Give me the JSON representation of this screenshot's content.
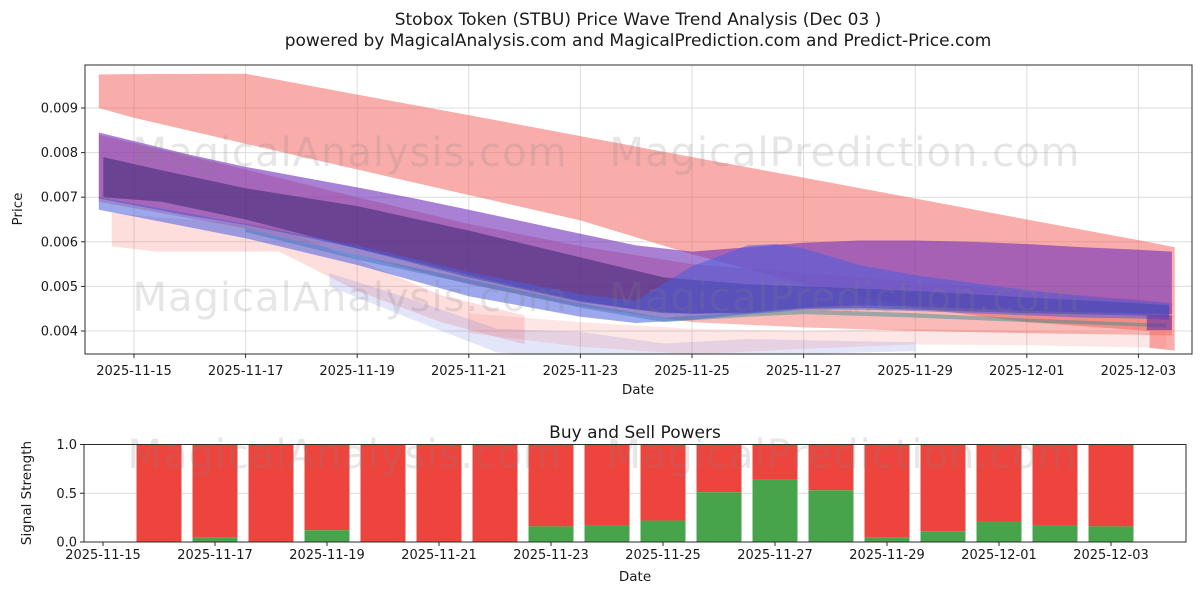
{
  "figure": {
    "title_line1": "Stobox Token (STBU) Price Wave Trend Analysis (Dec 03 )",
    "title_line2": "powered by MagicalAnalysis.com and MagicalPrediction.com and Predict-Price.com"
  },
  "watermarks": {
    "left_text": "MagicalAnalysis.com",
    "right_text": "MagicalPrediction.com"
  },
  "chart_data": [
    {
      "type": "area",
      "name": "price-wave-chart",
      "ylabel": "Price",
      "xlabel": "Date",
      "x_tick_labels": [
        "2025-11-15",
        "2025-11-17",
        "2025-11-19",
        "2025-11-21",
        "2025-11-23",
        "2025-11-25",
        "2025-11-27",
        "2025-11-29",
        "2025-12-01",
        "2025-12-03"
      ],
      "x_tick_days": [
        0,
        2,
        4,
        6,
        8,
        10,
        12,
        14,
        16,
        18
      ],
      "y_tick_labels": [
        "0.004",
        "0.005",
        "0.006",
        "0.007",
        "0.008",
        "0.009"
      ],
      "y_tick_values": [
        0.004,
        0.005,
        0.006,
        0.007,
        0.008,
        0.009
      ],
      "ylim": [
        0.0035,
        0.00995
      ],
      "grid": true,
      "bands": [
        {
          "name": "pink-faint-left",
          "color": "rgba(244,92,86,0.20)",
          "x": [
            -0.4,
            0.4,
            2.2,
            2.6,
            4,
            5.5,
            7
          ],
          "top": [
            0.00665,
            0.00655,
            0.0064,
            0.0063,
            0.0056,
            0.0048,
            0.00435
          ],
          "bottom": [
            0.0059,
            0.00578,
            0.00578,
            0.00578,
            0.0049,
            0.0042,
            0.0037
          ]
        },
        {
          "name": "blue-faint-low",
          "color": "rgba(100,110,220,0.18)",
          "x": [
            3.5,
            5,
            6.5,
            8,
            9.5,
            11,
            12.5,
            14
          ],
          "top": [
            0.0053,
            0.0047,
            0.00405,
            0.00398,
            0.00372,
            0.00382,
            0.00378,
            0.00375
          ],
          "bottom": [
            0.005,
            0.00425,
            0.00352,
            0.0034,
            0.00335,
            0.00345,
            0.0035,
            0.00355
          ]
        },
        {
          "name": "pink-faint-low",
          "color": "rgba(244,92,86,0.15)",
          "x": [
            6,
            8,
            10,
            12,
            14,
            16,
            18.5
          ],
          "top": [
            0.0044,
            0.0042,
            0.00405,
            0.004,
            0.00405,
            0.004,
            0.00395
          ],
          "bottom": [
            0.00395,
            0.00365,
            0.00348,
            0.0036,
            0.0037,
            0.00368,
            0.00362
          ]
        },
        {
          "name": "outer-red-forecast",
          "color": "rgba(244,92,86,0.50)",
          "x": [
            -0.63,
            0,
            2,
            4,
            6,
            8,
            10,
            12,
            14,
            16,
            18.2,
            18.2,
            18.65
          ],
          "top": [
            0.00975,
            0.00976,
            0.00977,
            0.0093,
            0.00884,
            0.00837,
            0.0079,
            0.00744,
            0.00697,
            0.0065,
            0.00599,
            0.00599,
            0.00588
          ],
          "bottom": [
            0.009,
            0.00878,
            0.0082,
            0.00762,
            0.00705,
            0.00648,
            0.00572,
            0.00506,
            0.00452,
            0.0042,
            0.004,
            0.00362,
            0.00356
          ]
        },
        {
          "name": "inner-red-band",
          "color": "rgba(244,92,86,0.42)",
          "x": [
            -0.63,
            2,
            4,
            6,
            8,
            10,
            12,
            14,
            16,
            18,
            18.6
          ],
          "top": [
            0.0084,
            0.00762,
            0.007,
            0.0064,
            0.0059,
            0.0055,
            0.0053,
            0.0051,
            0.0049,
            0.0047,
            0.00462
          ],
          "bottom": [
            0.0069,
            0.0063,
            0.0057,
            0.00505,
            0.00455,
            0.0042,
            0.00408,
            0.004,
            0.00395,
            0.00392,
            0.0039
          ]
        },
        {
          "name": "teal-trace",
          "color": "rgba(46,140,140,0.45)",
          "x": [
            2,
            4,
            6,
            8,
            9.5,
            11,
            12,
            14,
            16,
            18.5
          ],
          "top": [
            0.0063,
            0.0057,
            0.00516,
            0.00462,
            0.0043,
            0.00442,
            0.00448,
            0.0044,
            0.00428,
            0.00416
          ],
          "bottom": [
            0.00622,
            0.0056,
            0.00506,
            0.00452,
            0.0042,
            0.00432,
            0.00438,
            0.0043,
            0.0042,
            0.00408
          ]
        },
        {
          "name": "purple-wave",
          "color": "rgba(115,50,185,0.62)",
          "x": [
            -0.63,
            1,
            2,
            3,
            4,
            5,
            6,
            7,
            8,
            9,
            10,
            11,
            12,
            13,
            14,
            15,
            16,
            17,
            18,
            18.6
          ],
          "top": [
            0.00845,
            0.00795,
            0.00768,
            0.00745,
            0.00722,
            0.00698,
            0.00672,
            0.00645,
            0.00618,
            0.00592,
            0.00578,
            0.00588,
            0.00598,
            0.00603,
            0.00603,
            0.006,
            0.00595,
            0.00588,
            0.00582,
            0.00578
          ],
          "bottom": [
            0.00697,
            0.00658,
            0.00638,
            0.00612,
            0.00585,
            0.00556,
            0.00525,
            0.00495,
            0.00468,
            0.00448,
            0.00438,
            0.00442,
            0.00452,
            0.00458,
            0.00455,
            0.0045,
            0.00445,
            0.00442,
            0.0044,
            0.00438
          ]
        },
        {
          "name": "navy-core",
          "color": "rgba(48,32,110,0.50)",
          "x": [
            -0.55,
            0.5,
            2,
            4,
            6,
            8,
            9.5,
            11,
            12,
            13,
            14,
            16,
            18,
            18.55
          ],
          "top": [
            0.0079,
            0.0076,
            0.0072,
            0.0068,
            0.00625,
            0.00565,
            0.0052,
            0.00505,
            0.005,
            0.00495,
            0.0049,
            0.00475,
            0.00462,
            0.00458
          ],
          "bottom": [
            0.007,
            0.0069,
            0.0065,
            0.00585,
            0.0052,
            0.00465,
            0.0044,
            0.0044,
            0.0045,
            0.00452,
            0.00448,
            0.0044,
            0.00435,
            0.00432
          ]
        },
        {
          "name": "blue-wave",
          "color": "rgba(75,95,220,0.55)",
          "x": [
            -0.63,
            2,
            4,
            6,
            8,
            9,
            10,
            11,
            11.5,
            12,
            13,
            14,
            15,
            16,
            17,
            18,
            18.55
          ],
          "top": [
            0.007,
            0.0064,
            0.00592,
            0.00532,
            0.00482,
            0.00468,
            0.00545,
            0.00592,
            0.00595,
            0.00585,
            0.00548,
            0.00525,
            0.00508,
            0.00492,
            0.00478,
            0.00468,
            0.00462
          ],
          "bottom": [
            0.00672,
            0.00608,
            0.00548,
            0.00478,
            0.00432,
            0.00418,
            0.00425,
            0.00438,
            0.00442,
            0.00448,
            0.00448,
            0.00445,
            0.0044,
            0.00435,
            0.0043,
            0.00428,
            0.00425
          ]
        },
        {
          "name": "purple-end-step",
          "color": "rgba(100,45,165,0.60)",
          "x": [
            18.15,
            18.6
          ],
          "top": [
            0.00435,
            0.00435
          ],
          "bottom": [
            0.00402,
            0.00402
          ]
        }
      ]
    },
    {
      "type": "bar",
      "name": "buy-sell-power-chart",
      "title": "Buy and Sell Powers",
      "ylabel": "Signal Strength",
      "xlabel": "Date",
      "x_tick_labels": [
        "2025-11-15",
        "2025-11-17",
        "2025-11-19",
        "2025-11-21",
        "2025-11-23",
        "2025-11-25",
        "2025-11-27",
        "2025-11-29",
        "2025-12-01",
        "2025-12-03"
      ],
      "x_tick_days": [
        0,
        2,
        4,
        6,
        8,
        10,
        12,
        14,
        16,
        18
      ],
      "y_tick_labels": [
        "0.0",
        "0.5",
        "1.0"
      ],
      "y_tick_values": [
        0,
        0.5,
        1
      ],
      "ylim": [
        0,
        1.0
      ],
      "grid": true,
      "categories": [
        "2025-11-16",
        "2025-11-17",
        "2025-11-18",
        "2025-11-19",
        "2025-11-20",
        "2025-11-21",
        "2025-11-22",
        "2025-11-23",
        "2025-11-24",
        "2025-11-25",
        "2025-11-26",
        "2025-11-27",
        "2025-11-28",
        "2025-11-29",
        "2025-11-30",
        "2025-12-01",
        "2025-12-02",
        "2025-12-03"
      ],
      "bar_days": [
        1,
        2,
        3,
        4,
        5,
        6,
        7,
        8,
        9,
        10,
        11,
        12,
        13,
        14,
        15,
        16,
        17,
        18
      ],
      "series": [
        {
          "name": "Buy Power",
          "color": "#47a44b",
          "values": [
            0.0,
            0.05,
            0.0,
            0.12,
            0.0,
            0.0,
            0.0,
            0.16,
            0.17,
            0.22,
            0.51,
            0.64,
            0.53,
            0.05,
            0.11,
            0.21,
            0.17,
            0.16
          ]
        },
        {
          "name": "Sell Power",
          "color": "#ee443e",
          "values": [
            1.0,
            0.95,
            1.0,
            0.88,
            1.0,
            1.0,
            1.0,
            0.84,
            0.83,
            0.78,
            0.49,
            0.36,
            0.47,
            0.95,
            0.89,
            0.79,
            0.83,
            0.84
          ]
        }
      ]
    }
  ]
}
